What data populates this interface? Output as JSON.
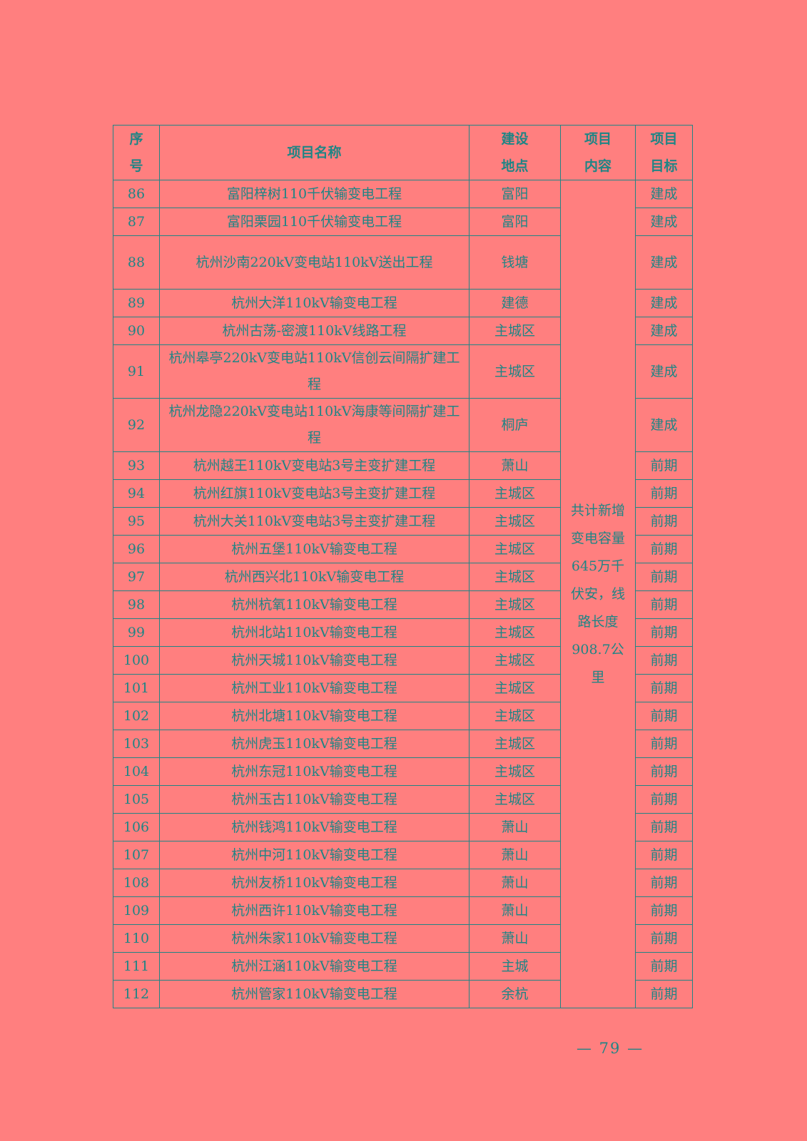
{
  "headers": {
    "no": "序\n号",
    "name": "项目名称",
    "location": "建设\n地点",
    "content": "项目\n内容",
    "target": "项目\n目标"
  },
  "content": "共计新增变电容量645万千伏安，线路长度908.7公里",
  "rows": [
    {
      "no": "86",
      "name": "富阳梓树110千伏输变电工程",
      "location": "富阳",
      "target": "建成"
    },
    {
      "no": "87",
      "name": "富阳栗园110千伏输变电工程",
      "location": "富阳",
      "target": "建成"
    },
    {
      "no": "88",
      "name": "杭州沙南220kV变电站110kV送出工程",
      "location": "钱塘",
      "target": "建成"
    },
    {
      "no": "89",
      "name": "杭州大洋110kV输变电工程",
      "location": "建德",
      "target": "建成"
    },
    {
      "no": "90",
      "name": "杭州古荡-密渡110kV线路工程",
      "location": "主城区",
      "target": "建成"
    },
    {
      "no": "91",
      "name": "杭州皋亭220kV变电站110kV信创云间隔扩建工程",
      "location": "主城区",
      "target": "建成"
    },
    {
      "no": "92",
      "name": "杭州龙隐220kV变电站110kV海康等间隔扩建工程",
      "location": "桐庐",
      "target": "建成"
    },
    {
      "no": "93",
      "name": "杭州越王110kV变电站3号主变扩建工程",
      "location": "萧山",
      "target": "前期"
    },
    {
      "no": "94",
      "name": "杭州红旗110kV变电站3号主变扩建工程",
      "location": "主城区",
      "target": "前期"
    },
    {
      "no": "95",
      "name": "杭州大关110kV变电站3号主变扩建工程",
      "location": "主城区",
      "target": "前期"
    },
    {
      "no": "96",
      "name": "杭州五堡110kV输变电工程",
      "location": "主城区",
      "target": "前期"
    },
    {
      "no": "97",
      "name": "杭州西兴北110kV输变电工程",
      "location": "主城区",
      "target": "前期"
    },
    {
      "no": "98",
      "name": "杭州杭氧110kV输变电工程",
      "location": "主城区",
      "target": "前期"
    },
    {
      "no": "99",
      "name": "杭州北站110kV输变电工程",
      "location": "主城区",
      "target": "前期"
    },
    {
      "no": "100",
      "name": "杭州天城110kV输变电工程",
      "location": "主城区",
      "target": "前期"
    },
    {
      "no": "101",
      "name": "杭州工业110kV输变电工程",
      "location": "主城区",
      "target": "前期"
    },
    {
      "no": "102",
      "name": "杭州北塘110kV输变电工程",
      "location": "主城区",
      "target": "前期"
    },
    {
      "no": "103",
      "name": "杭州虎玉110kV输变电工程",
      "location": "主城区",
      "target": "前期"
    },
    {
      "no": "104",
      "name": "杭州东冠110kV输变电工程",
      "location": "主城区",
      "target": "前期"
    },
    {
      "no": "105",
      "name": "杭州玉古110kV输变电工程",
      "location": "主城区",
      "target": "前期"
    },
    {
      "no": "106",
      "name": "杭州钱鸿110kV输变电工程",
      "location": "萧山",
      "target": "前期"
    },
    {
      "no": "107",
      "name": "杭州中河110kV输变电工程",
      "location": "萧山",
      "target": "前期"
    },
    {
      "no": "108",
      "name": "杭州友桥110kV输变电工程",
      "location": "萧山",
      "target": "前期"
    },
    {
      "no": "109",
      "name": "杭州西许110kV输变电工程",
      "location": "萧山",
      "target": "前期"
    },
    {
      "no": "110",
      "name": "杭州朱家110kV输变电工程",
      "location": "萧山",
      "target": "前期"
    },
    {
      "no": "111",
      "name": "杭州江涵110kV输变电工程",
      "location": "主城",
      "target": "前期"
    },
    {
      "no": "112",
      "name": "杭州管家110kV输变电工程",
      "location": "余杭",
      "target": "前期"
    }
  ],
  "footer": {
    "page": "— 79 —"
  }
}
